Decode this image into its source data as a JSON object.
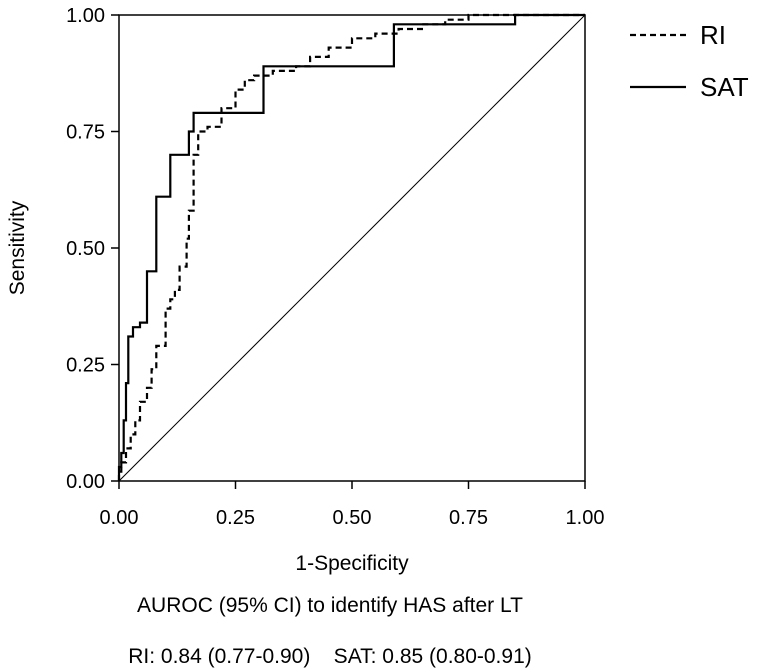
{
  "chart_data": {
    "type": "line",
    "title": "",
    "xlabel": "1-Specificity",
    "ylabel": "Sensitivity",
    "xlim": [
      0,
      1
    ],
    "ylim": [
      0,
      1
    ],
    "grid": false,
    "legend_position": "outside-top-right",
    "xticks": [
      "0.00",
      "0.25",
      "0.50",
      "0.75",
      "1.00"
    ],
    "yticks": [
      "0.00",
      "0.25",
      "0.50",
      "0.75",
      "1.00"
    ],
    "reference_line": {
      "x": [
        0,
        1
      ],
      "y": [
        0,
        1
      ]
    },
    "series": [
      {
        "name": "RI",
        "style": "dashed",
        "x": [
          0,
          0,
          0.005,
          0.005,
          0.015,
          0.015,
          0.025,
          0.025,
          0.035,
          0.035,
          0.045,
          0.045,
          0.06,
          0.06,
          0.07,
          0.07,
          0.08,
          0.08,
          0.1,
          0.1,
          0.11,
          0.11,
          0.12,
          0.12,
          0.13,
          0.13,
          0.145,
          0.145,
          0.15,
          0.15,
          0.16,
          0.16,
          0.17,
          0.17,
          0.19,
          0.19,
          0.22,
          0.22,
          0.25,
          0.25,
          0.27,
          0.27,
          0.29,
          0.29,
          0.33,
          0.33,
          0.38,
          0.38,
          0.41,
          0.41,
          0.45,
          0.45,
          0.5,
          0.5,
          0.55,
          0.55,
          0.6,
          0.6,
          0.65,
          0.65,
          0.7,
          0.7,
          0.75,
          0.75,
          0.8,
          0.8,
          0.85,
          0.85,
          1
        ],
        "y": [
          0,
          0.02,
          0.02,
          0.04,
          0.04,
          0.07,
          0.07,
          0.1,
          0.1,
          0.13,
          0.13,
          0.17,
          0.17,
          0.2,
          0.2,
          0.24,
          0.24,
          0.29,
          0.29,
          0.37,
          0.37,
          0.39,
          0.39,
          0.41,
          0.41,
          0.46,
          0.46,
          0.52,
          0.52,
          0.58,
          0.58,
          0.7,
          0.7,
          0.75,
          0.75,
          0.76,
          0.76,
          0.8,
          0.8,
          0.84,
          0.84,
          0.86,
          0.86,
          0.87,
          0.87,
          0.88,
          0.88,
          0.89,
          0.89,
          0.91,
          0.91,
          0.93,
          0.93,
          0.95,
          0.95,
          0.96,
          0.96,
          0.97,
          0.97,
          0.98,
          0.98,
          0.99,
          0.99,
          1,
          1,
          1,
          1,
          1,
          1
        ]
      },
      {
        "name": "SAT",
        "style": "solid",
        "x": [
          0,
          0,
          0.005,
          0.005,
          0.01,
          0.01,
          0.015,
          0.015,
          0.02,
          0.02,
          0.03,
          0.03,
          0.045,
          0.045,
          0.06,
          0.06,
          0.08,
          0.08,
          0.11,
          0.11,
          0.14,
          0.14,
          0.15,
          0.15,
          0.16,
          0.16,
          0.31,
          0.31,
          0.59,
          0.59,
          0.85,
          0.85,
          1
        ],
        "y": [
          0,
          0.03,
          0.03,
          0.06,
          0.06,
          0.13,
          0.13,
          0.21,
          0.21,
          0.31,
          0.31,
          0.33,
          0.33,
          0.34,
          0.34,
          0.45,
          0.45,
          0.61,
          0.61,
          0.7,
          0.7,
          0.7,
          0.7,
          0.75,
          0.75,
          0.79,
          0.79,
          0.89,
          0.89,
          0.98,
          0.98,
          1,
          1
        ]
      }
    ],
    "annotation_title": "AUROC (95% CI) to identify HAS after LT",
    "annotation_values": "RI: 0.84 (0.77-0.90)    SAT: 0.85 (0.80-0.91)"
  }
}
